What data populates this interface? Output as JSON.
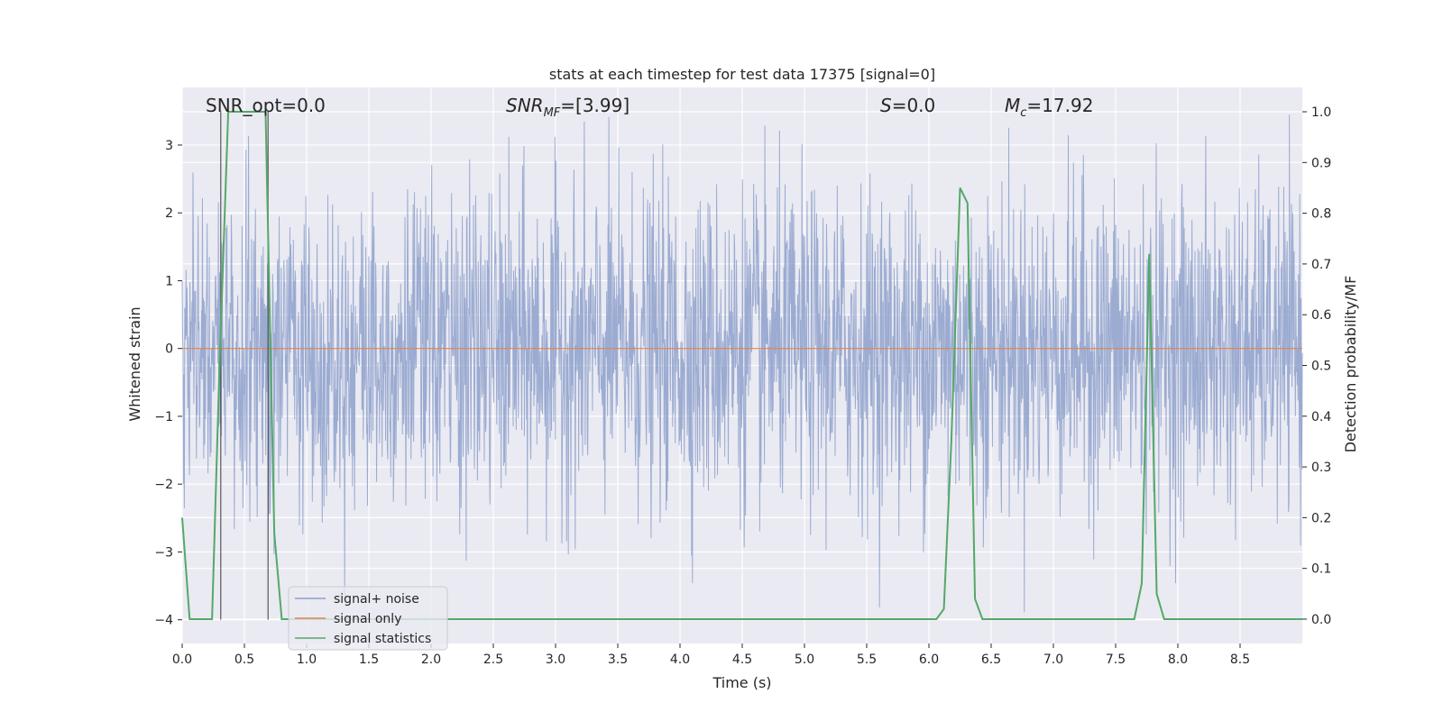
{
  "chart_data": {
    "type": "line",
    "title": "stats at each timestep for test data 17375 [signal=0]",
    "xlabel": "Time (s)",
    "ylabel_left": "Whitened strain",
    "ylabel_right": "Detection probability/MF",
    "xlim": [
      0.0,
      9.0
    ],
    "ylim_left": [
      -4.35,
      3.85
    ],
    "ylim_right": [
      -0.048,
      1.048
    ],
    "x_ticks": [
      0.0,
      0.5,
      1.0,
      1.5,
      2.0,
      2.5,
      3.0,
      3.5,
      4.0,
      4.5,
      5.0,
      5.5,
      6.0,
      6.5,
      7.0,
      7.5,
      8.0,
      8.5
    ],
    "x_tick_labels": [
      "0.0",
      "0.5",
      "1.0",
      "1.5",
      "2.0",
      "2.5",
      "3.0",
      "3.5",
      "4.0",
      "4.5",
      "5.0",
      "5.5",
      "6.0",
      "6.5",
      "7.0",
      "7.5",
      "8.0",
      "8.5"
    ],
    "y_left_ticks": [
      3,
      2,
      1,
      0,
      -1,
      -2,
      -3,
      -4
    ],
    "y_left_tick_labels": [
      "3",
      "2",
      "1",
      "0",
      "−1",
      "−2",
      "−3",
      "−4"
    ],
    "y_right_ticks": [
      1.0,
      0.9,
      0.8,
      0.7,
      0.6,
      0.5,
      0.4,
      0.3,
      0.2,
      0.1,
      0.0
    ],
    "y_right_tick_labels": [
      "1.0",
      "0.9",
      "0.8",
      "0.7",
      "0.6",
      "0.5",
      "0.4",
      "0.3",
      "0.2",
      "0.1",
      "0.0"
    ],
    "grid": true,
    "legend_position": "lower-left",
    "annotations": {
      "snr_opt": "SNR_opt=0.0",
      "snr_mf_main": "SNR",
      "snr_mf_sub": "MF",
      "snr_mf_value": "=[3.99]",
      "s_main": "S",
      "s_value": "=0.0",
      "mc_main": "M",
      "mc_sub": "c",
      "mc_value": "=17.92"
    },
    "vertical_markers_x": [
      0.31,
      0.69
    ],
    "series": [
      {
        "name": "signal+ noise",
        "color": "#8da0cb",
        "description_type": "noise",
        "x_range": [
          0.0,
          9.0
        ],
        "approx_envelope_y": [
          -4.0,
          3.5
        ]
      },
      {
        "name": "signal only",
        "color": "#dd8452",
        "x": [
          0.0,
          9.0
        ],
        "y": [
          0.0,
          0.0
        ]
      },
      {
        "name": "signal statistics",
        "color": "#55a868",
        "axis": "right",
        "x": [
          0.0,
          0.06,
          0.12,
          0.18,
          0.24,
          0.3,
          0.37,
          0.43,
          0.49,
          0.55,
          0.61,
          0.67,
          0.74,
          0.8,
          0.86,
          6.06,
          6.12,
          6.18,
          6.25,
          6.31,
          6.37,
          6.43,
          6.49,
          6.55,
          6.61,
          6.67,
          7.65,
          7.71,
          7.77,
          7.83,
          7.89,
          7.95,
          8.01,
          9.0
        ],
        "y": [
          0.2,
          0.0,
          0.0,
          0.0,
          0.0,
          0.5,
          1.0,
          1.0,
          1.0,
          1.0,
          1.0,
          1.0,
          0.17,
          0.0,
          0.0,
          0.0,
          0.02,
          0.35,
          0.85,
          0.82,
          0.04,
          0.0,
          0.0,
          0.0,
          0.0,
          0.0,
          0.0,
          0.07,
          0.72,
          0.05,
          0.0,
          0.0,
          0.0,
          0.0
        ]
      }
    ]
  }
}
